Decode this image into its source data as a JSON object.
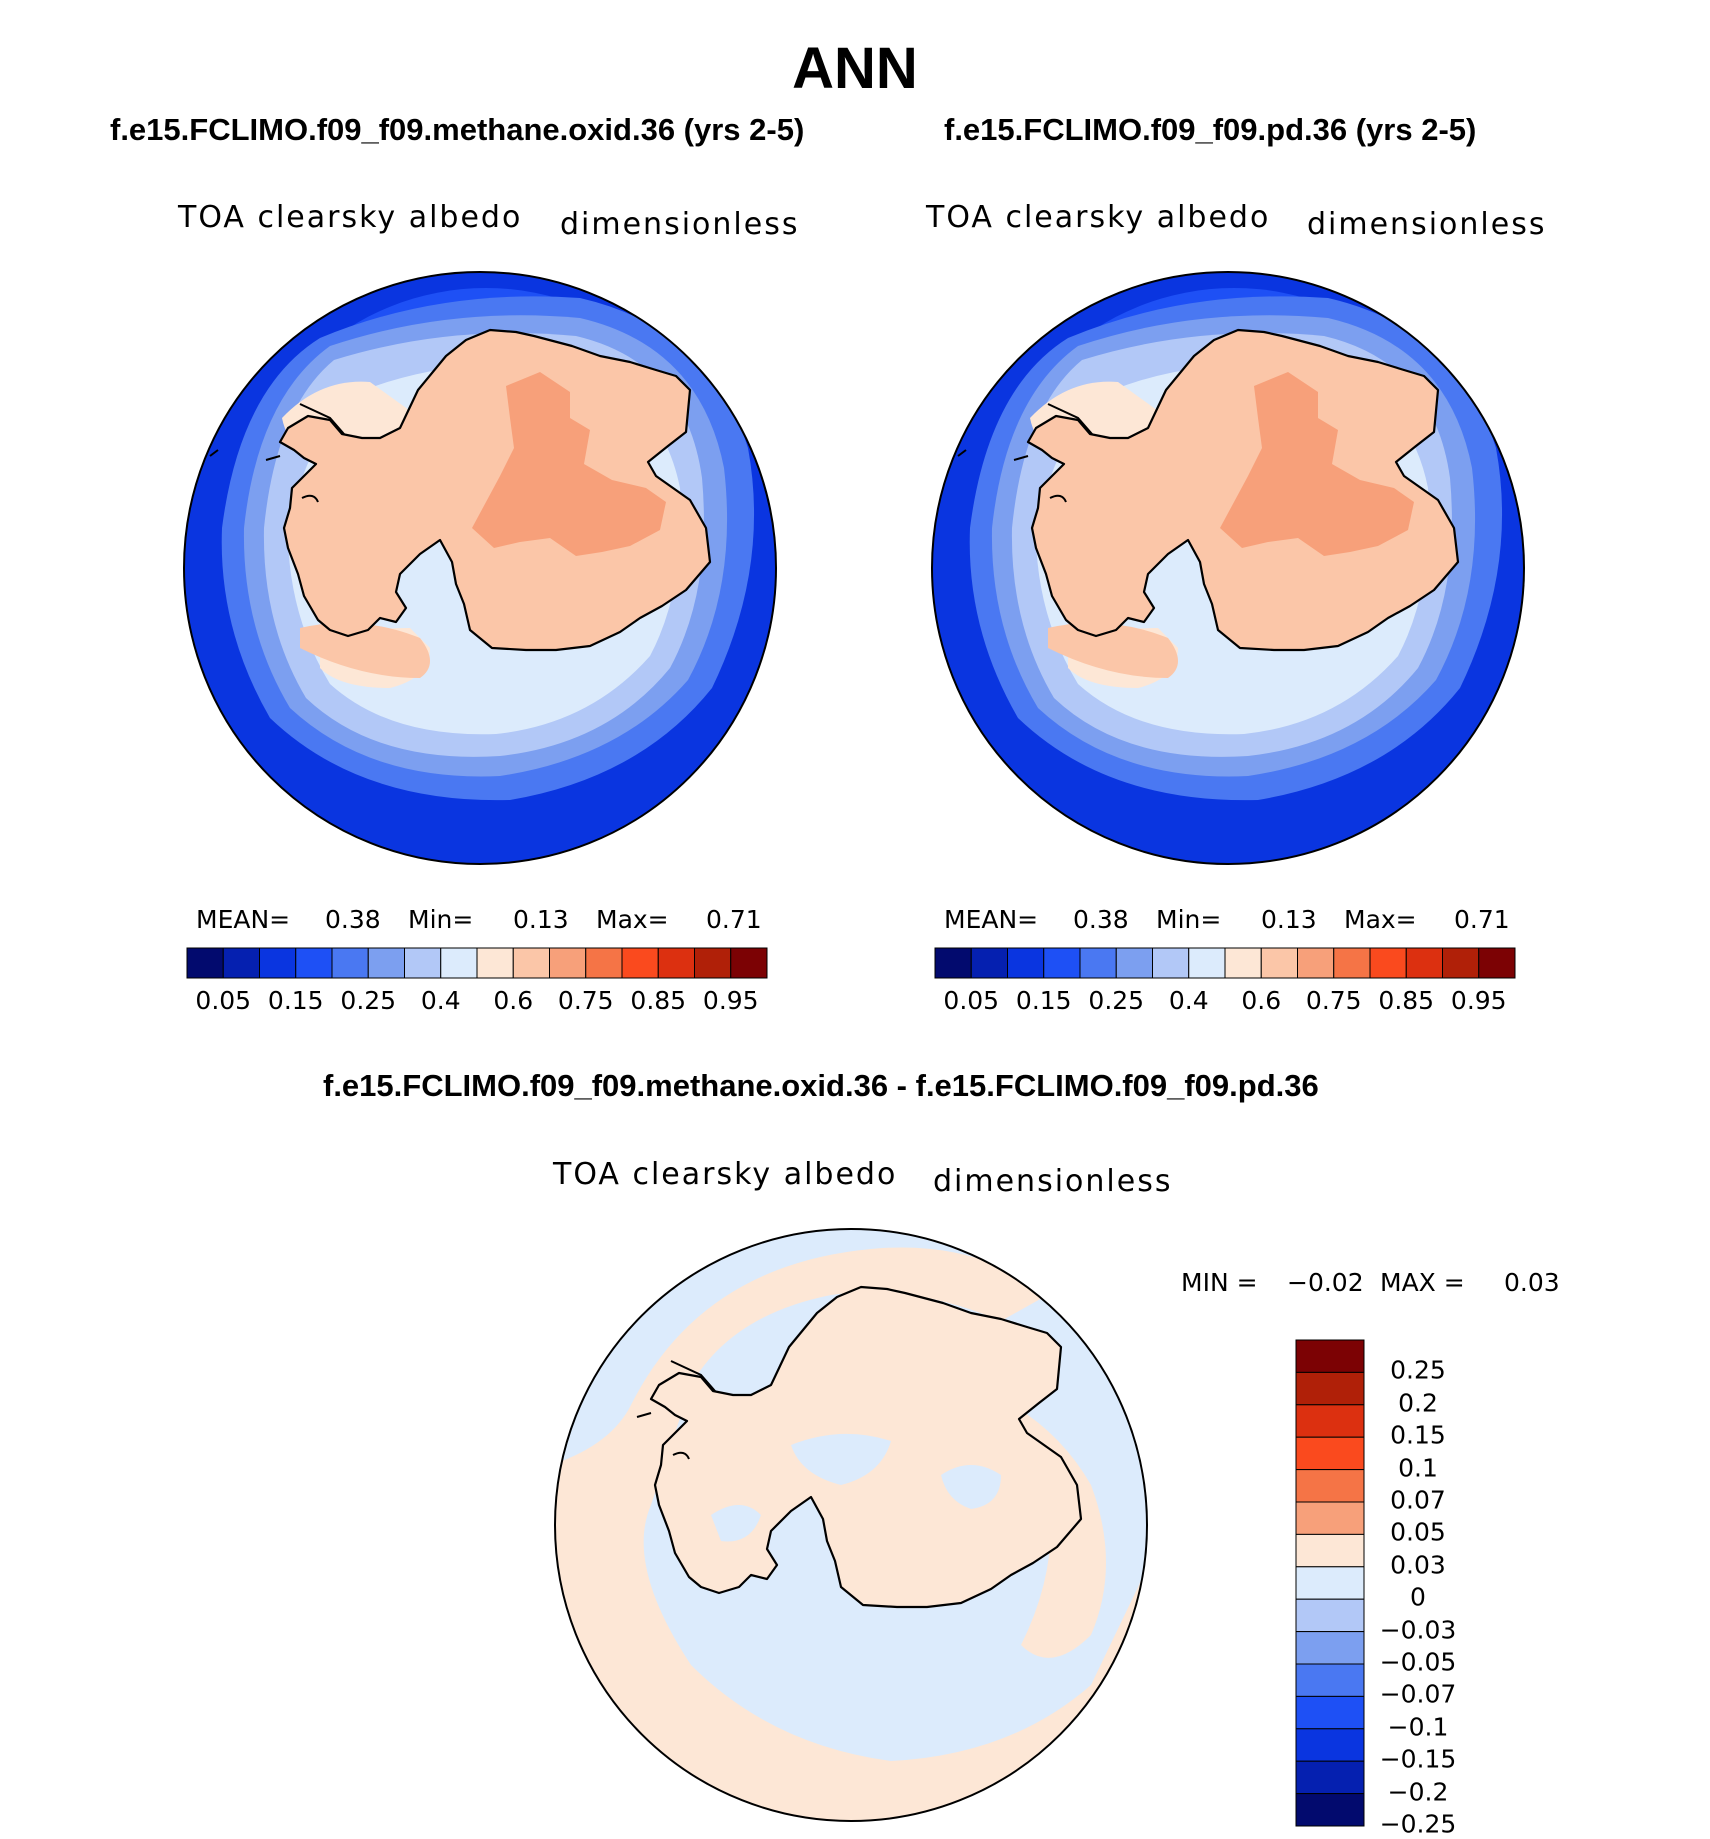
{
  "page_title": "ANN",
  "panels": [
    {
      "case_title": "f.e15.FCLIMO.f09_f09.methane.oxid.36 (yrs 2-5)",
      "variable": "TOA clearsky albedo",
      "units": "dimensionless",
      "mean_label": "MEAN=",
      "mean_value": "0.38",
      "min_label": "Min=",
      "min_value": "0.13",
      "max_label": "Max=",
      "max_value": "0.71"
    },
    {
      "case_title": "f.e15.FCLIMO.f09_f09.pd.36 (yrs 2-5)",
      "variable": "TOA clearsky albedo",
      "units": "dimensionless",
      "mean_label": "MEAN=",
      "mean_value": "0.38",
      "min_label": "Min=",
      "min_value": "0.13",
      "max_label": "Max=",
      "max_value": "0.71"
    }
  ],
  "diff_panel": {
    "case_title": "f.e15.FCLIMO.f09_f09.methane.oxid.36 - f.e15.FCLIMO.f09_f09.pd.36",
    "variable": "TOA clearsky albedo",
    "units": "dimensionless",
    "min_label": "MIN =",
    "min_value": "−0.02",
    "max_label": "MAX =",
    "max_value": "0.03"
  },
  "colorbar_abs": {
    "colors": [
      "#020a6e",
      "#0520b0",
      "#0a35e0",
      "#1e50f5",
      "#4a78f2",
      "#7c9ff0",
      "#b2c8f7",
      "#dcebfc",
      "#fde7d6",
      "#fbc6a8",
      "#f7a07a",
      "#f57446",
      "#fa4a1e",
      "#dc3010",
      "#b02008",
      "#7c0204"
    ],
    "tick_labels": [
      "0.05",
      "0.15",
      "0.25",
      "0.4",
      "0.6",
      "0.75",
      "0.85",
      "0.95"
    ]
  },
  "colorbar_diff": {
    "colors_top_to_bottom": [
      "#7c0204",
      "#b02008",
      "#dc3010",
      "#fa4a1e",
      "#f57446",
      "#f7a07a",
      "#fde7d6",
      "#dcebfc",
      "#b2c8f7",
      "#7c9ff0",
      "#4a78f2",
      "#1e50f5",
      "#0a35e0",
      "#0520b0",
      "#020a6e"
    ],
    "tick_labels": [
      "0.25",
      "0.2",
      "0.15",
      "0.1",
      "0.07",
      "0.05",
      "0.03",
      "0",
      "−0.03",
      "−0.05",
      "−0.07",
      "−0.1",
      "−0.15",
      "−0.2",
      "−0.25"
    ]
  },
  "map_colors": {
    "ocean_far": "#0a35e0",
    "ocean_mid": "#1e50f5",
    "ocean_near": "#4a78f2",
    "ice_edge": "#7c9ff0",
    "sea_ice": "#b2c8f7",
    "sea_ice_light": "#dcebfc",
    "land_low": "#fde7d6",
    "land": "#fbc6a8",
    "plateau": "#f7a07a",
    "diff_positive": "#fde7d6",
    "diff_negative": "#dcebfc"
  }
}
